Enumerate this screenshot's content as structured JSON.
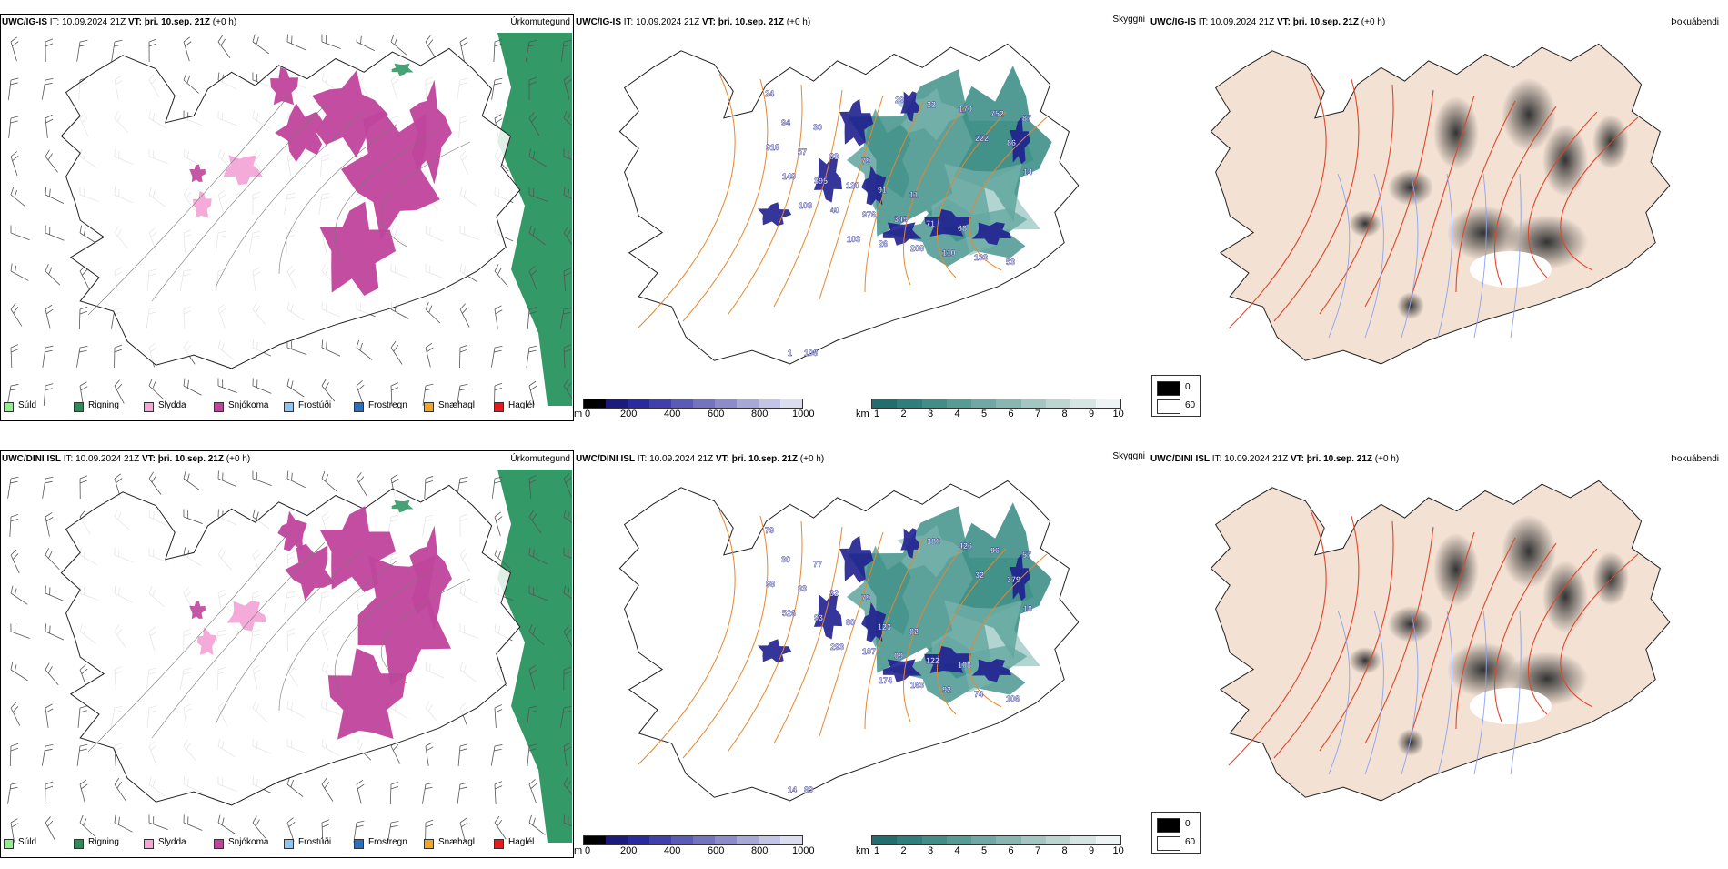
{
  "rows": [
    {
      "model": "UWC/IG-IS",
      "it_label": "IT:",
      "it_value": "10.09.2024 21Z",
      "vt_label": "VT:",
      "vt_value": "þri. 10.sep. 21Z",
      "lead": "(+0 h)",
      "panel_titles": [
        "Úrkomutegund",
        "Skyggni",
        "Þokuábendi"
      ],
      "cloud_labels": [
        "24",
        "30",
        "79",
        "11",
        "68",
        "53",
        "94",
        "83",
        "91",
        "71",
        "133",
        "87",
        "57",
        "120",
        "349",
        "110",
        "752",
        "918",
        "395",
        "976",
        "208",
        "170",
        "86",
        "149",
        "40",
        "26",
        "22",
        "222",
        "14",
        "108",
        "103",
        "29"
      ],
      "vis_labels": [
        "1",
        "108"
      ]
    },
    {
      "model": "UWC/DINI ISL",
      "it_label": "IT:",
      "it_value": "10.09.2024 21Z",
      "vt_label": "VT:",
      "vt_value": "þri. 10.sep. 21Z",
      "lead": "(+0 h)",
      "panel_titles": [
        "Úrkomutegund",
        "Skyggni",
        "Þokuábendi"
      ],
      "cloud_labels": [
        "79",
        "77",
        "79",
        "82",
        "108",
        "106",
        "30",
        "32",
        "123",
        "122",
        "74",
        "57",
        "83",
        "80",
        "09",
        "92",
        "96",
        "98",
        "93",
        "197",
        "163",
        "426",
        "379",
        "526",
        "293",
        "174",
        "380",
        "32",
        "18"
      ],
      "vis_labels": [
        "14",
        "89"
      ]
    }
  ],
  "precip_legend": [
    {
      "label": "Súld",
      "color": "#90ee90"
    },
    {
      "label": "Rigning",
      "color": "#2e8b57"
    },
    {
      "label": "Slydda",
      "color": "#f4a6d7"
    },
    {
      "label": "Snjókoma",
      "color": "#c0449c"
    },
    {
      "label": "Frostúði",
      "color": "#8fc4f0"
    },
    {
      "label": "Frostregn",
      "color": "#2c6fbf"
    },
    {
      "label": "Snæhagl",
      "color": "#f5a623"
    },
    {
      "label": "Haglél",
      "color": "#e8191e"
    }
  ],
  "cloudbase_scale": {
    "unit": "m",
    "ticks": [
      "0",
      "200",
      "400",
      "600",
      "800",
      "1000"
    ],
    "colors": [
      "#000000",
      "#1a1a80",
      "#2a2aa0",
      "#3f3faf",
      "#5a5ab8",
      "#7373c2",
      "#8c8ccc",
      "#a8a8d8",
      "#c4c4e6",
      "#dcdcf0"
    ]
  },
  "visibility_scale": {
    "unit": "km",
    "ticks": [
      "1",
      "2",
      "3",
      "4",
      "5",
      "6",
      "7",
      "8",
      "9",
      "10"
    ],
    "colors": [
      "#1f6f6f",
      "#2c7f7a",
      "#3f8f88",
      "#559c95",
      "#6ea9a3",
      "#88b7b1",
      "#a2c6c1",
      "#bcd5d1",
      "#d6e5e2",
      "#eef4f3"
    ]
  },
  "fog_legend": {
    "items": [
      {
        "label": "0",
        "color": "#000000"
      },
      {
        "label": "60",
        "color": "#ffffff"
      }
    ]
  }
}
